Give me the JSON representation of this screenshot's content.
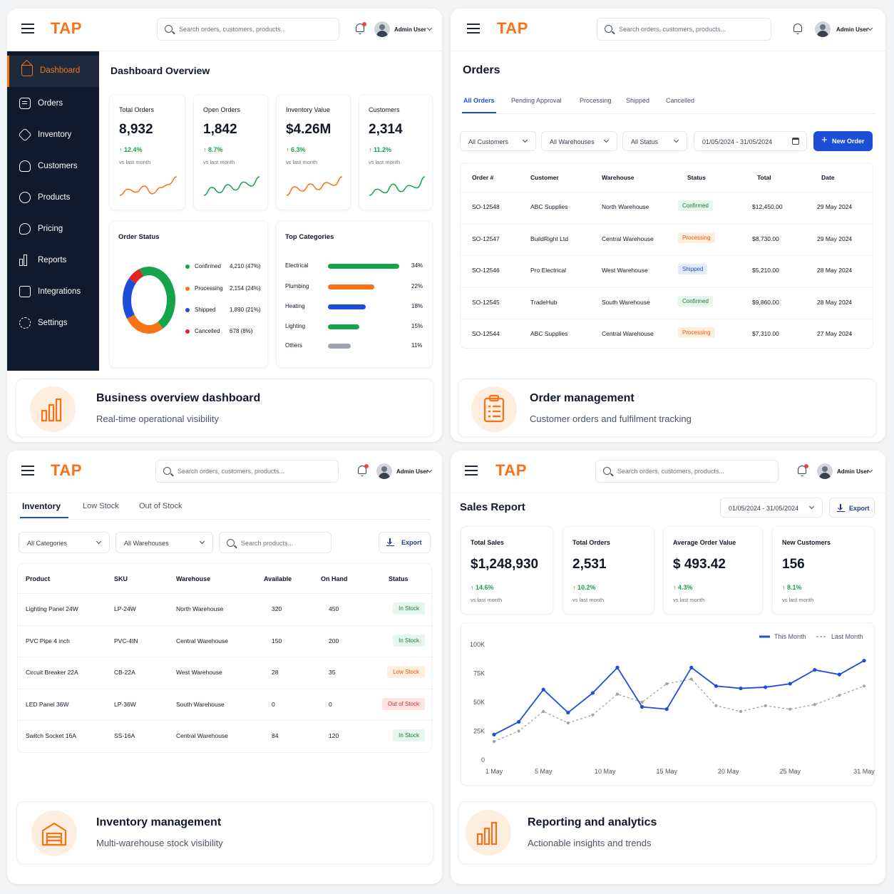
{
  "common": {
    "logo": "TAP",
    "search_placeholder": "Search orders, customers, products...",
    "user_name": "Admin User"
  },
  "dashboard": {
    "sidebar": [
      {
        "label": "Dashboard",
        "icon": "home-icon"
      },
      {
        "label": "Orders",
        "icon": "clipboard-icon"
      },
      {
        "label": "Inventory",
        "icon": "box-icon"
      },
      {
        "label": "Customers",
        "icon": "user-icon"
      },
      {
        "label": "Products",
        "icon": "tag-icon"
      },
      {
        "label": "Pricing",
        "icon": "price-icon"
      },
      {
        "label": "Reports",
        "icon": "bar-chart-icon"
      },
      {
        "label": "Integrations",
        "icon": "plug-icon"
      },
      {
        "label": "Settings",
        "icon": "gear-icon"
      }
    ],
    "title": "Dashboard Overview",
    "kpis": [
      {
        "label": "Total Orders",
        "value": "8,932",
        "change": "12.4%",
        "sub": "vs last month",
        "spark": [
          10,
          14,
          12,
          16,
          11,
          15,
          17,
          22
        ]
      },
      {
        "label": "Open Orders",
        "value": "1,842",
        "change": "8.7%",
        "sub": "vs last month",
        "spark": [
          8,
          14,
          10,
          16,
          12,
          18,
          15,
          22
        ]
      },
      {
        "label": "Inventory Value",
        "value": "$4.26M",
        "change": "6.3%",
        "sub": "vs last month",
        "spark": [
          9,
          15,
          12,
          17,
          13,
          18,
          16,
          22
        ]
      },
      {
        "label": "Customers",
        "value": "2,314",
        "change": "11.2%",
        "sub": "vs last month",
        "spark": [
          8,
          13,
          10,
          17,
          11,
          16,
          14,
          23
        ]
      }
    ],
    "order_status": {
      "title": "Order Status",
      "items": [
        {
          "name": "Confirmed",
          "value": "4,210 (47%)",
          "pct": 47,
          "color": "#16a34a"
        },
        {
          "name": "Processing",
          "value": "2,154 (24%)",
          "pct": 24,
          "color": "#f97316"
        },
        {
          "name": "Shipped",
          "value": "1,890 (21%)",
          "pct": 21,
          "color": "#1d4ed8"
        },
        {
          "name": "Cancelled",
          "value": "678 (8%)",
          "pct": 8,
          "color": "#dc2626"
        }
      ]
    },
    "top_categories": {
      "title": "Top Categories",
      "items": [
        {
          "name": "Electrical",
          "pct": "34%",
          "value": 34,
          "color": "#16a34a"
        },
        {
          "name": "Plumbing",
          "pct": "22%",
          "value": 22,
          "color": "#f97316"
        },
        {
          "name": "Heating",
          "pct": "18%",
          "value": 18,
          "color": "#1d4ed8"
        },
        {
          "name": "Lighting",
          "pct": "15%",
          "value": 15,
          "color": "#16a34a"
        },
        {
          "name": "Others",
          "pct": "11%",
          "value": 11,
          "color": "#9ca3af"
        }
      ]
    },
    "feature": {
      "title": "Business overview dashboard",
      "subtitle": "Real-time operational visibility"
    }
  },
  "orders": {
    "title": "Orders",
    "tabs": [
      "All Orders",
      "Pending Approval",
      "Processing",
      "Shipped",
      "Cancelled"
    ],
    "filters": [
      "All Customers",
      "All Warehouses",
      "All Status"
    ],
    "date_range": "01/05/2024 - 31/05/2024",
    "new_order": "New Order",
    "columns": [
      "Order #",
      "Customer",
      "Warehouse",
      "Status",
      "Total",
      "Date"
    ],
    "rows": [
      {
        "id": "SO-12548",
        "customer": "ABC Supplies",
        "warehouse": "North Warehouse",
        "status": "Confirmed",
        "total": "$12,450.00",
        "date": "29 May 2024"
      },
      {
        "id": "SO-12547",
        "customer": "BuildRight Ltd",
        "warehouse": "Central Warehouse",
        "status": "Processing",
        "total": "$8,730.00",
        "date": "29 May 2024"
      },
      {
        "id": "SO-12546",
        "customer": "Pro Electrical",
        "warehouse": "West Warehouse",
        "status": "Shipped",
        "total": "$5,210.00",
        "date": "28 May 2024"
      },
      {
        "id": "SO-12545",
        "customer": "TradeHub",
        "warehouse": "South Warehouse",
        "status": "Confirmed",
        "total": "$9,860.00",
        "date": "28 May 2024"
      },
      {
        "id": "SO-12544",
        "customer": "ABC Supplies",
        "warehouse": "Central Warehouse",
        "status": "Processing",
        "total": "$7,310.00",
        "date": "27 May 2024"
      }
    ],
    "feature": {
      "title": "Order management",
      "subtitle": "Customer orders and fulfilment tracking"
    }
  },
  "inventory": {
    "tabs": [
      "Inventory",
      "Low Stock",
      "Out of Stock"
    ],
    "filters": [
      "All Categories",
      "All Warehouses"
    ],
    "search_placeholder": "Search products...",
    "export": "Export",
    "columns": [
      "Product",
      "SKU",
      "Warehouse",
      "Available",
      "On Hand",
      "Status"
    ],
    "rows": [
      {
        "product": "Lighting Panel 24W",
        "sku": "LP-24W",
        "warehouse": "North Warehouse",
        "available": "320",
        "on_hand": "450",
        "status": "In Stock"
      },
      {
        "product": "PVC Pipe 4 inch",
        "sku": "PVC-4IN",
        "warehouse": "Central Warehouse",
        "available": "150",
        "on_hand": "200",
        "status": "In Stock"
      },
      {
        "product": "Circuit Breaker 22A",
        "sku": "CB-22A",
        "warehouse": "West Warehouse",
        "available": "28",
        "on_hand": "35",
        "status": "Low Stock"
      },
      {
        "product": "LED Panel 36W",
        "sku": "LP-36W",
        "warehouse": "South Warehouse",
        "available": "0",
        "on_hand": "0",
        "status": "Out of Stock"
      },
      {
        "product": "Switch Socket 16A",
        "sku": "SS-16A",
        "warehouse": "Central Warehouse",
        "available": "84",
        "on_hand": "120",
        "status": "In Stock"
      }
    ],
    "feature": {
      "title": "Inventory management",
      "subtitle": "Multi-warehouse stock visibility"
    }
  },
  "sales": {
    "title": "Sales Report",
    "date_range": "01/05/2024 - 31/05/2024",
    "export": "Export",
    "kpis": [
      {
        "label": "Total Sales",
        "value": "$1,248,930",
        "change": "14.6%",
        "sub": "vs last month"
      },
      {
        "label": "Total Orders",
        "value": "2,531",
        "change": "10.2%",
        "sub": "vs last month"
      },
      {
        "label": "Average Order Value",
        "value": "$ 493.42",
        "change": "4.3%",
        "sub": "vs last month"
      },
      {
        "label": "New Customers",
        "value": "156",
        "change": "8.1%",
        "sub": "vs last month"
      }
    ],
    "feature": {
      "title": "Reporting and analytics",
      "subtitle": "Actionable insights and trends"
    }
  },
  "chart_data": {
    "type": "line",
    "x": [
      1,
      3,
      5,
      7,
      9,
      11,
      13,
      15,
      17,
      19,
      21,
      23,
      25,
      27,
      29,
      31
    ],
    "xticks": [
      "1 May",
      "5 May",
      "10 May",
      "15 May",
      "20 May",
      "25 May",
      "31 May"
    ],
    "xtick_days": [
      1,
      5,
      10,
      15,
      20,
      25,
      31
    ],
    "yticks": [
      "0",
      "25K",
      "50K",
      "75K",
      "100K"
    ],
    "ylim": [
      0,
      100000
    ],
    "series": [
      {
        "name": "This Month",
        "color": "#1d4ed8",
        "style": "solid",
        "values": [
          22000,
          33000,
          61000,
          41000,
          58000,
          80000,
          46000,
          44000,
          80000,
          64000,
          62000,
          63000,
          66000,
          78000,
          74000,
          86000
        ]
      },
      {
        "name": "Last Month",
        "color": "#9ca3af",
        "style": "dashed",
        "values": [
          16000,
          25000,
          42000,
          32000,
          39000,
          57000,
          50000,
          66000,
          70000,
          47000,
          42000,
          47000,
          44000,
          48000,
          56000,
          64000
        ]
      }
    ],
    "legend": "top-right"
  }
}
